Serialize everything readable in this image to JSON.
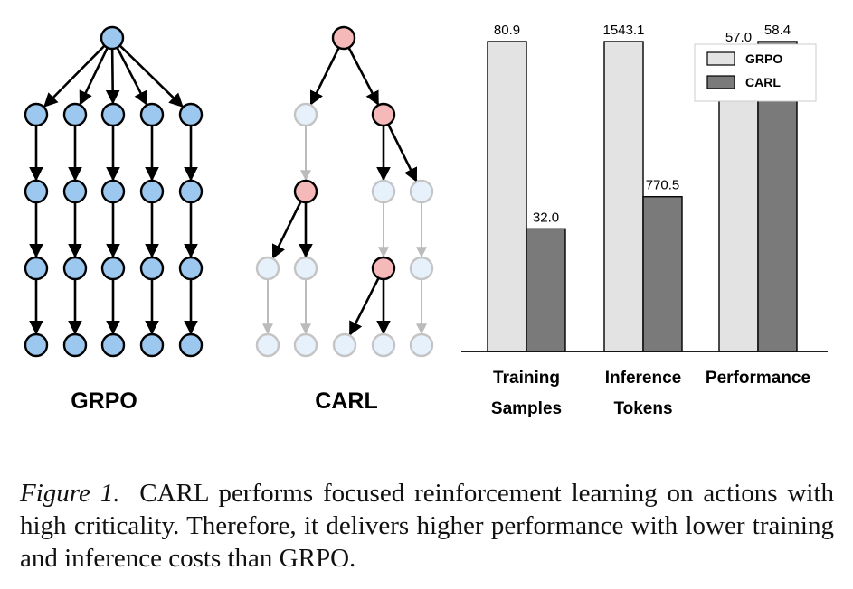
{
  "trees": {
    "grpo_label": "GRPO",
    "carl_label": "CARL"
  },
  "chart_data": {
    "type": "bar",
    "categories": [
      [
        "Training",
        "Samples"
      ],
      [
        "Inference",
        "Tokens"
      ],
      [
        "Performance"
      ]
    ],
    "series": [
      {
        "name": "GRPO",
        "values": [
          80.9,
          1543.1,
          57.0
        ],
        "labels": [
          "80.9",
          "1543.1",
          "57.0"
        ],
        "color": "#e3e3e3"
      },
      {
        "name": "CARL",
        "values": [
          32.0,
          770.5,
          58.4
        ],
        "labels": [
          "32.0",
          "770.5",
          "58.4"
        ],
        "color": "#7a7a7a"
      }
    ],
    "note": "Each category uses its own scale (bars normalized per group)",
    "legend_position": "top-right",
    "grid": false
  },
  "caption": {
    "label": "Figure 1.",
    "text": "CARL performs focused reinforcement learning on actions with high criticality. Therefore, it delivers higher performance with lower training and inference costs than GRPO."
  },
  "colors": {
    "grpo_node": "#9cc8f0",
    "carl_critical_node": "#f6b9b9",
    "carl_faded_node": "#e6f1fb",
    "faded_edge": "#bbbbbb"
  }
}
